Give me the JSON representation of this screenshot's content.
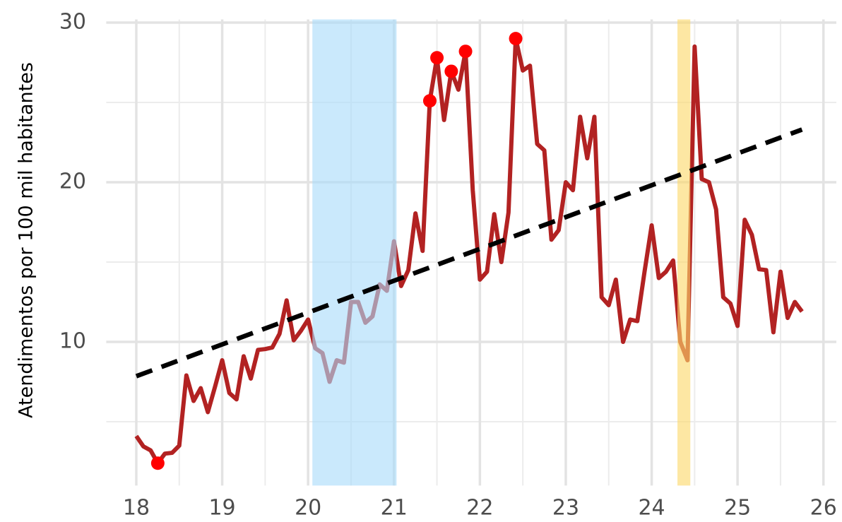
{
  "chart_data": {
    "type": "line",
    "y_label": "Atendimentos por 100 mil habitantes",
    "xlim": [
      17.65,
      26.15
    ],
    "ylim": [
      1,
      30.2
    ],
    "xticks": [
      18,
      19,
      20,
      21,
      22,
      23,
      24,
      25,
      26
    ],
    "yticks": [
      10,
      20,
      30
    ],
    "x_minor_grid": [
      18.5,
      19.5,
      20.5,
      21.5,
      22.5,
      23.5,
      24.5,
      25.5
    ],
    "y_minor_grid": [
      5,
      15,
      25
    ],
    "grid": true,
    "shaded_regions": [
      {
        "xmin": 20.05,
        "xmax": 21.03,
        "color": "#a9dcfa"
      },
      {
        "xmin": 24.3,
        "xmax": 24.45,
        "color": "#fcd96a"
      }
    ],
    "series": [
      {
        "type": "line",
        "color": "#b22222",
        "x": [
          18.0,
          18.083,
          18.167,
          18.25,
          18.333,
          18.417,
          18.5,
          18.583,
          18.667,
          18.75,
          18.833,
          18.917,
          19.0,
          19.083,
          19.167,
          19.25,
          19.333,
          19.417,
          19.5,
          19.583,
          19.667,
          19.75,
          19.833,
          19.917,
          20.0,
          20.083,
          20.167,
          20.25,
          20.333,
          20.417,
          20.5,
          20.583,
          20.667,
          20.75,
          20.833,
          20.917,
          21.0,
          21.083,
          21.167,
          21.25,
          21.333,
          21.417,
          21.5,
          21.583,
          21.667,
          21.75,
          21.833,
          21.917,
          22.0,
          22.083,
          22.167,
          22.25,
          22.333,
          22.417,
          22.5,
          22.583,
          22.667,
          22.75,
          22.833,
          22.917,
          23.0,
          23.083,
          23.167,
          23.25,
          23.333,
          23.417,
          23.5,
          23.583,
          23.667,
          23.75,
          23.833,
          23.917,
          24.0,
          24.083,
          24.167,
          24.25,
          24.333,
          24.417,
          24.5,
          24.583,
          24.667,
          24.75,
          24.833,
          24.917,
          25.0,
          25.083,
          25.167,
          25.25,
          25.333,
          25.417,
          25.5,
          25.583,
          25.667,
          25.75
        ],
        "values": [
          4.1,
          3.45,
          3.2,
          2.4,
          3.0,
          3.05,
          3.5,
          7.9,
          6.3,
          7.1,
          5.6,
          7.2,
          8.85,
          6.8,
          6.4,
          9.1,
          7.7,
          9.5,
          9.55,
          9.65,
          10.5,
          12.6,
          10.1,
          10.7,
          11.4,
          9.6,
          9.3,
          7.5,
          8.85,
          8.7,
          12.5,
          12.5,
          11.2,
          11.6,
          13.6,
          13.2,
          16.3,
          13.5,
          14.5,
          18.05,
          15.7,
          25.1,
          27.8,
          23.9,
          26.95,
          25.8,
          28.2,
          19.5,
          13.9,
          14.4,
          18.0,
          15.0,
          18.1,
          29.0,
          27.0,
          27.3,
          22.4,
          22.0,
          16.4,
          17.0,
          20.0,
          19.5,
          24.1,
          21.5,
          24.1,
          12.8,
          12.3,
          13.9,
          10.0,
          11.4,
          11.3,
          14.4,
          17.3,
          14.0,
          14.4,
          15.1,
          10.0,
          8.85,
          28.5,
          20.2,
          20.0,
          18.3,
          12.8,
          12.4,
          11.0,
          17.65,
          16.7,
          14.55,
          14.5,
          10.6,
          14.4,
          11.5,
          12.5,
          11.9
        ]
      },
      {
        "type": "trend",
        "color": "#000000",
        "x": [
          18.0,
          25.75
        ],
        "values": [
          7.85,
          23.3
        ]
      },
      {
        "type": "scatter",
        "color": "#ff0000",
        "x": [
          18.25,
          21.417,
          21.5,
          21.667,
          21.833,
          22.417
        ],
        "values": [
          2.4,
          25.1,
          27.8,
          26.95,
          28.2,
          29.0
        ]
      }
    ]
  }
}
